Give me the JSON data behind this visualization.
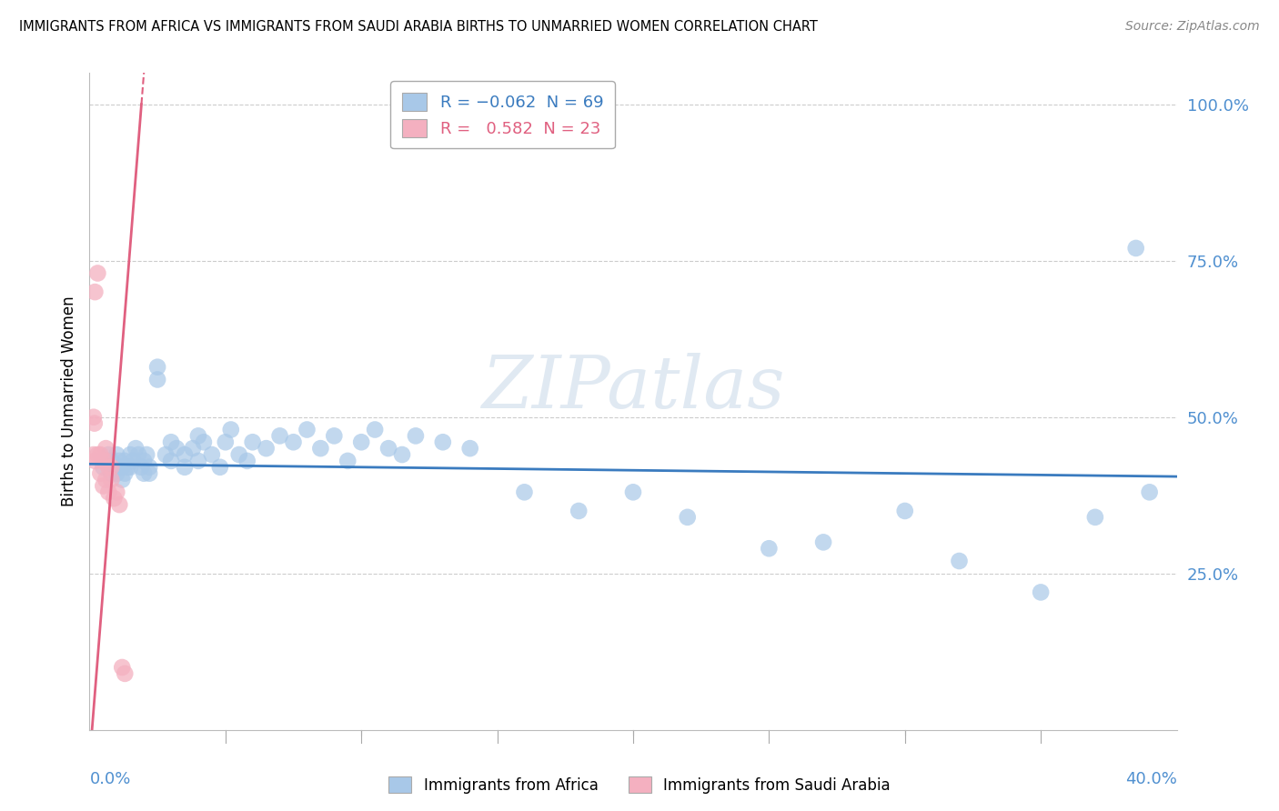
{
  "title": "IMMIGRANTS FROM AFRICA VS IMMIGRANTS FROM SAUDI ARABIA BIRTHS TO UNMARRIED WOMEN CORRELATION CHART",
  "source": "Source: ZipAtlas.com",
  "ylabel": "Births to Unmarried Women",
  "xlim": [
    0.0,
    0.4
  ],
  "ylim": [
    0.0,
    1.05
  ],
  "ytick_values": [
    0.25,
    0.5,
    0.75,
    1.0
  ],
  "africa_color": "#a8c8e8",
  "saudi_color": "#f4b0c0",
  "africa_line_color": "#3a7bbf",
  "saudi_line_color": "#e06080",
  "watermark_text": "ZIPatlas",
  "africa_x": [
    0.005,
    0.007,
    0.008,
    0.008,
    0.009,
    0.01,
    0.01,
    0.011,
    0.012,
    0.012,
    0.013,
    0.013,
    0.014,
    0.015,
    0.015,
    0.016,
    0.017,
    0.018,
    0.019,
    0.02,
    0.02,
    0.021,
    0.022,
    0.022,
    0.025,
    0.025,
    0.028,
    0.03,
    0.03,
    0.032,
    0.035,
    0.035,
    0.038,
    0.04,
    0.04,
    0.042,
    0.045,
    0.048,
    0.05,
    0.052,
    0.055,
    0.058,
    0.06,
    0.065,
    0.07,
    0.075,
    0.08,
    0.085,
    0.09,
    0.095,
    0.1,
    0.105,
    0.11,
    0.115,
    0.12,
    0.13,
    0.14,
    0.16,
    0.18,
    0.2,
    0.22,
    0.25,
    0.27,
    0.3,
    0.32,
    0.35,
    0.37,
    0.385,
    0.39
  ],
  "africa_y": [
    0.42,
    0.44,
    0.41,
    0.43,
    0.42,
    0.44,
    0.41,
    0.43,
    0.42,
    0.4,
    0.43,
    0.41,
    0.42,
    0.44,
    0.42,
    0.43,
    0.45,
    0.44,
    0.42,
    0.43,
    0.41,
    0.44,
    0.42,
    0.41,
    0.56,
    0.58,
    0.44,
    0.46,
    0.43,
    0.45,
    0.44,
    0.42,
    0.45,
    0.47,
    0.43,
    0.46,
    0.44,
    0.42,
    0.46,
    0.48,
    0.44,
    0.43,
    0.46,
    0.45,
    0.47,
    0.46,
    0.48,
    0.45,
    0.47,
    0.43,
    0.46,
    0.48,
    0.45,
    0.44,
    0.47,
    0.46,
    0.45,
    0.38,
    0.35,
    0.38,
    0.34,
    0.29,
    0.3,
    0.35,
    0.27,
    0.22,
    0.34,
    0.77,
    0.38
  ],
  "saudi_x": [
    0.0015,
    0.0015,
    0.0018,
    0.002,
    0.002,
    0.003,
    0.003,
    0.004,
    0.004,
    0.005,
    0.005,
    0.006,
    0.006,
    0.006,
    0.007,
    0.007,
    0.008,
    0.008,
    0.009,
    0.01,
    0.011,
    0.012,
    0.013
  ],
  "saudi_y": [
    0.44,
    0.5,
    0.49,
    0.43,
    0.7,
    0.73,
    0.44,
    0.44,
    0.41,
    0.43,
    0.39,
    0.45,
    0.43,
    0.4,
    0.42,
    0.38,
    0.42,
    0.4,
    0.37,
    0.38,
    0.36,
    0.1,
    0.09
  ],
  "saudi_line_intercept": -0.05,
  "saudi_line_slope": 55.0,
  "africa_line_intercept": 0.425,
  "africa_line_slope": -0.05
}
